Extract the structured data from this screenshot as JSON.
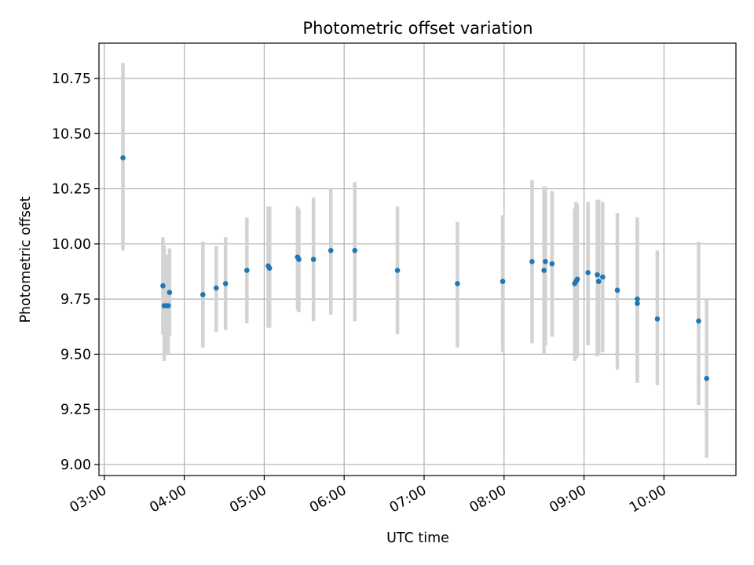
{
  "chart_data": {
    "type": "scatter",
    "title": "Photometric offset variation",
    "xlabel": "UTC time",
    "ylabel": "Photometric offset",
    "x_ticks": [
      "03:00",
      "04:00",
      "05:00",
      "06:00",
      "07:00",
      "08:00",
      "09:00",
      "10:00"
    ],
    "y_ticks": [
      "9.00",
      "9.25",
      "9.50",
      "9.75",
      "10.00",
      "10.25",
      "10.50",
      "10.75"
    ],
    "xlim": [
      "02:56",
      "10:54"
    ],
    "ylim": [
      8.95,
      10.91
    ],
    "grid": true,
    "colors": {
      "point": "#1f77b4",
      "errorbar": "#d3d3d3",
      "grid": "#b0b0b0"
    },
    "series": [
      {
        "x": [
          "03:14",
          "03:44",
          "03:45",
          "03:47",
          "03:48",
          "03:49",
          "04:14",
          "04:24",
          "04:31",
          "04:47",
          "05:03",
          "05:04",
          "05:25",
          "05:26",
          "05:37",
          "05:50",
          "06:08",
          "06:40",
          "07:25",
          "07:59",
          "08:21",
          "08:30",
          "08:31",
          "08:36",
          "08:53",
          "08:54",
          "08:55",
          "09:03",
          "09:10",
          "09:11",
          "09:14",
          "09:25",
          "09:40",
          "09:40",
          "09:55",
          "10:26",
          "10:32"
        ],
        "y": [
          10.39,
          9.81,
          9.72,
          9.72,
          9.72,
          9.78,
          9.77,
          9.8,
          9.82,
          9.88,
          9.9,
          9.89,
          9.94,
          9.93,
          9.93,
          9.97,
          9.97,
          9.88,
          9.82,
          9.83,
          9.92,
          9.88,
          9.92,
          9.91,
          9.82,
          9.83,
          9.84,
          9.87,
          9.86,
          9.83,
          9.85,
          9.79,
          9.75,
          9.73,
          9.66,
          9.65,
          9.39
        ],
        "y_lower": [
          9.97,
          9.59,
          9.47,
          9.5,
          9.5,
          9.58,
          9.53,
          9.6,
          9.61,
          9.64,
          9.62,
          9.62,
          9.7,
          9.69,
          9.65,
          9.68,
          9.65,
          9.59,
          9.53,
          9.51,
          9.55,
          9.5,
          9.54,
          9.58,
          9.47,
          9.48,
          9.49,
          9.54,
          9.49,
          9.5,
          9.51,
          9.43,
          9.38,
          9.37,
          9.36,
          9.27,
          9.03
        ],
        "y_upper": [
          10.82,
          10.03,
          9.99,
          9.95,
          9.95,
          9.98,
          10.01,
          9.99,
          10.03,
          10.12,
          10.17,
          10.17,
          10.17,
          10.16,
          10.21,
          10.25,
          10.28,
          10.17,
          10.1,
          10.13,
          10.29,
          10.26,
          10.26,
          10.24,
          10.16,
          10.19,
          10.18,
          10.19,
          10.2,
          10.2,
          10.19,
          10.14,
          10.12,
          10.11,
          9.97,
          10.01,
          9.75
        ]
      }
    ]
  }
}
